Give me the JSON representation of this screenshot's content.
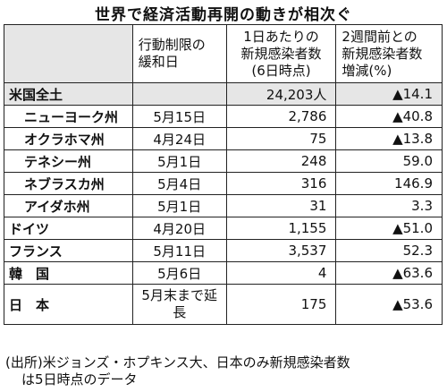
{
  "title": "世界で経済活動再開の動きが相次ぐ",
  "headers": {
    "c1": [
      "行動制限の",
      "緩和日"
    ],
    "c2": [
      "1日あたりの",
      "新規感染者数",
      "(6日時点)"
    ],
    "c3": [
      "2週間前との",
      "新規感染者数",
      "増減(%)"
    ]
  },
  "rows": [
    {
      "name": "米国全土",
      "date": "",
      "cases": "24,203人",
      "change": "▲14.1"
    },
    {
      "name": "ニューヨーク州",
      "date": "5月15日",
      "cases": "2,786",
      "change": "▲40.8"
    },
    {
      "name": "オクラホマ州",
      "date": "4月24日",
      "cases": "75",
      "change": "▲13.8"
    },
    {
      "name": "テネシー州",
      "date": "5月1日",
      "cases": "248",
      "change": "59.0"
    },
    {
      "name": "ネブラスカ州",
      "date": "5月4日",
      "cases": "316",
      "change": "146.9"
    },
    {
      "name": "アイダホ州",
      "date": "5月1日",
      "cases": "31",
      "change": "3.3"
    },
    {
      "name": "ドイツ",
      "date": "4月20日",
      "cases": "1,155",
      "change": "▲51.0"
    },
    {
      "name": "フランス",
      "date": "5月11日",
      "cases": "3,537",
      "change": "52.3"
    },
    {
      "name": "韓　国",
      "date": "5月6日",
      "cases": "4",
      "change": "▲63.6"
    },
    {
      "name": "日　本",
      "date": "5月末まで延長",
      "cases": "175",
      "change": "▲53.6"
    }
  ],
  "note": [
    "(出所)米ジョンズ・ホプキンス大、日本のみ新規感染者数",
    "は5日時点のデータ"
  ]
}
